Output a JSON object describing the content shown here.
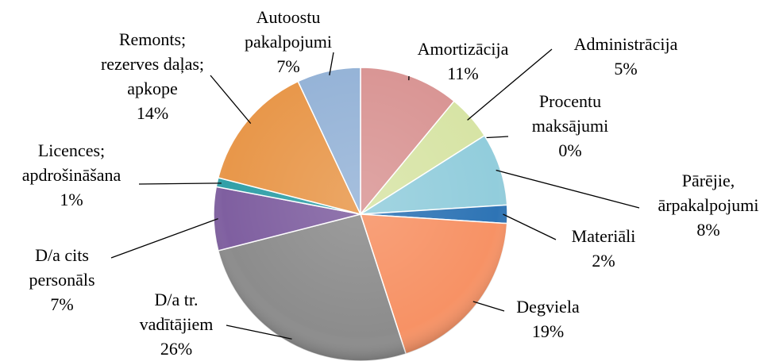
{
  "chart_data": {
    "type": "pie",
    "categories": [
      "Amortizācija",
      "Administrācija",
      "Procentu maksājumi",
      "Pārējie, ārpakalpojumi",
      "Materiāli",
      "Degviela",
      "D/a tr. vadītājiem",
      "D/a cits personāls",
      "Licences; apdrošināšana",
      "Remonts; rezerves daļas; apkope",
      "Autoostu pakalpojumi"
    ],
    "values": [
      11,
      5,
      0,
      8,
      2,
      19,
      26,
      7,
      1,
      14,
      7
    ],
    "value_labels": [
      "11%",
      "5%",
      "0%",
      "8%",
      "2%",
      "19%",
      "26%",
      "7%",
      "1%",
      "14%",
      "7%"
    ],
    "colors": [
      "#d99594",
      "#d7e4a5",
      "#b7dde8",
      "#92cddc",
      "#2e74b5",
      "#f79265",
      "#8c8c8c",
      "#7f5fa0",
      "#31a0a8",
      "#e8974a",
      "#95b3d7"
    ]
  }
}
